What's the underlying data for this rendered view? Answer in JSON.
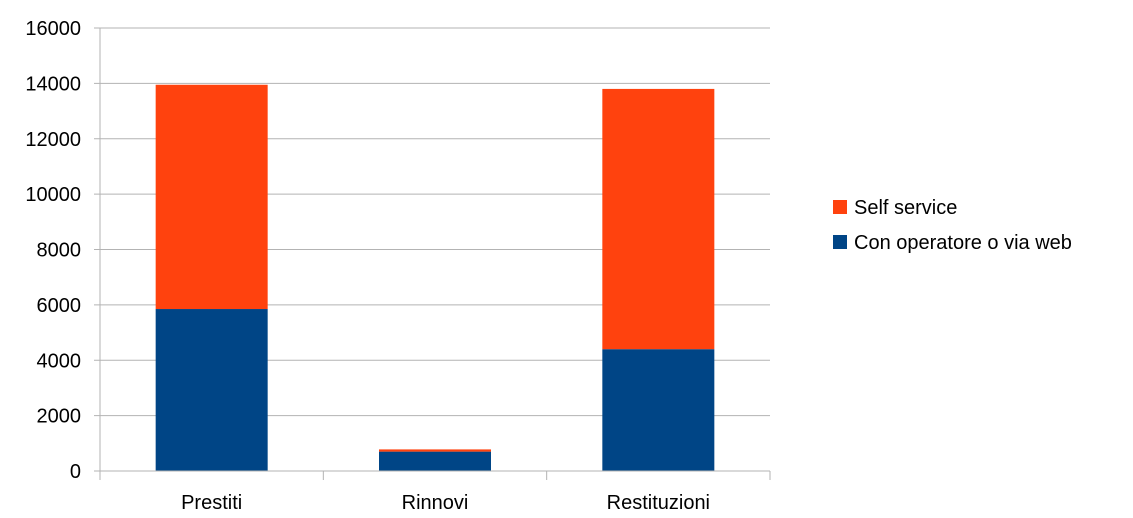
{
  "chart_data": {
    "type": "bar",
    "stacked": true,
    "categories": [
      "Prestiti",
      "Rinnovi",
      "Restituzioni"
    ],
    "series": [
      {
        "name": "Con operatore o via web",
        "color": "#004586",
        "values": [
          5850,
          700,
          4400
        ]
      },
      {
        "name": "Self service",
        "color": "#ff420e",
        "values": [
          8100,
          80,
          9400
        ]
      }
    ],
    "title": "",
    "xlabel": "",
    "ylabel": "",
    "ylim": [
      0,
      16000
    ],
    "yticks": [
      "0",
      "2000",
      "4000",
      "6000",
      "8000",
      "10000",
      "12000",
      "14000",
      "16000"
    ],
    "grid": true,
    "gridline_color": "#b3b3b3",
    "legend_position": "right"
  }
}
